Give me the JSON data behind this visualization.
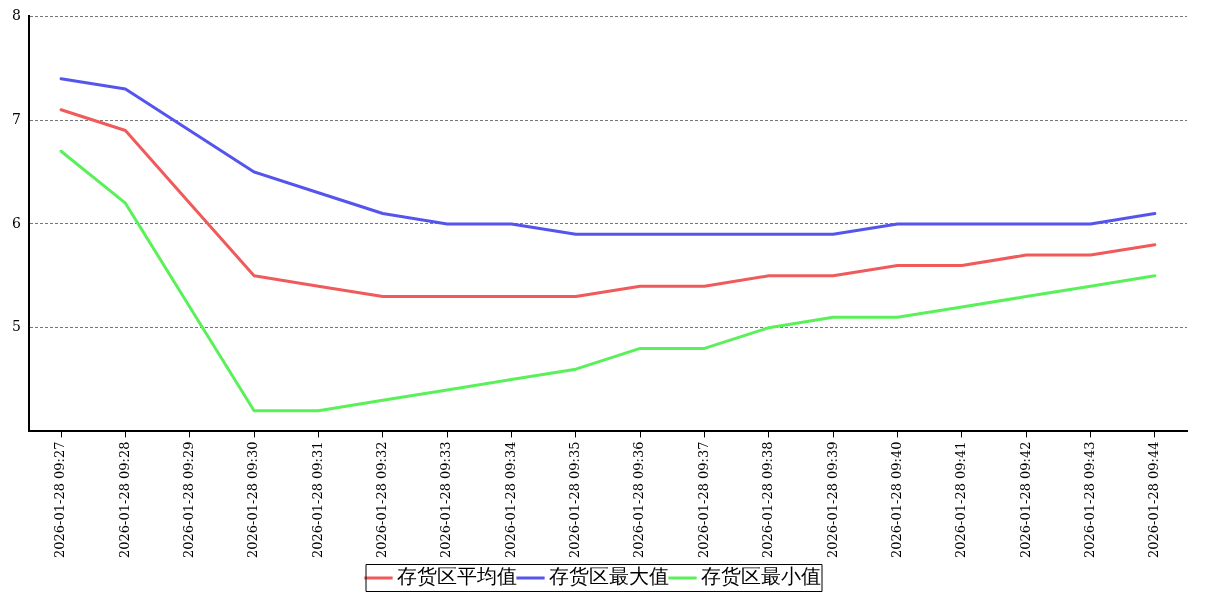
{
  "chart_data": {
    "type": "line",
    "categories": [
      "2026-01-28 09:27",
      "2026-01-28 09:28",
      "2026-01-28 09:29",
      "2026-01-28 09:30",
      "2026-01-28 09:31",
      "2026-01-28 09:32",
      "2026-01-28 09:33",
      "2026-01-28 09:34",
      "2026-01-28 09:35",
      "2026-01-28 09:36",
      "2026-01-28 09:37",
      "2026-01-28 09:38",
      "2026-01-28 09:39",
      "2026-01-28 09:40",
      "2026-01-28 09:41",
      "2026-01-28 09:42",
      "2026-01-28 09:43",
      "2026-01-28 09:44"
    ],
    "series": [
      {
        "name": "存货区平均值",
        "color": "#f05a5a",
        "values": [
          7.1,
          6.9,
          6.2,
          5.5,
          5.4,
          5.3,
          5.3,
          5.3,
          5.3,
          5.4,
          5.4,
          5.5,
          5.5,
          5.6,
          5.6,
          5.7,
          5.7,
          5.8
        ]
      },
      {
        "name": "存货区最大值",
        "color": "#5555ee",
        "values": [
          7.4,
          7.3,
          6.9,
          6.5,
          6.3,
          6.1,
          6.0,
          6.0,
          5.9,
          5.9,
          5.9,
          5.9,
          5.9,
          6.0,
          6.0,
          6.0,
          6.0,
          6.1
        ]
      },
      {
        "name": "存货区最小值",
        "color": "#5af05a",
        "values": [
          6.7,
          6.2,
          5.2,
          4.2,
          4.2,
          4.3,
          4.4,
          4.5,
          4.6,
          4.8,
          4.8,
          5.0,
          5.1,
          5.1,
          5.2,
          5.3,
          5.4,
          5.5
        ]
      }
    ],
    "ylim": [
      4,
      8
    ],
    "yticks": [
      5,
      6,
      7,
      8
    ],
    "grid": "y",
    "legend": "bottom",
    "marker": "none",
    "line_style": "solid"
  }
}
